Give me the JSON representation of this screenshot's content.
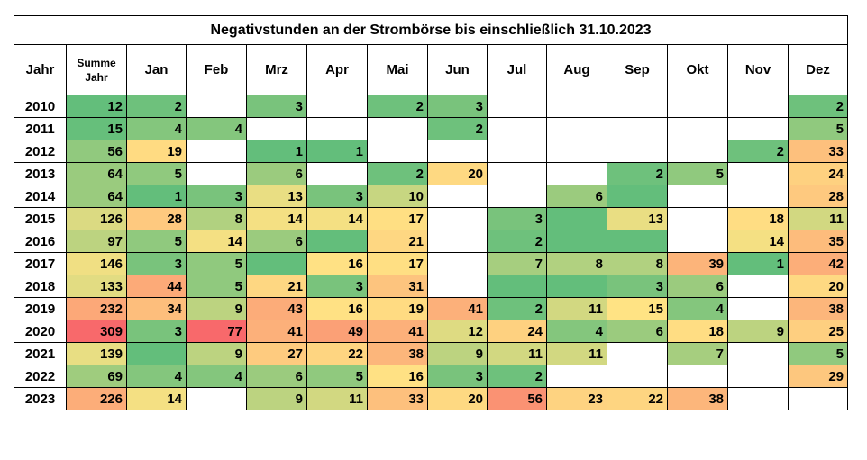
{
  "chart_data": {
    "type": "heatmap",
    "title": "Negativstunden an der Strombörse bis einschließlich  31.10.2023",
    "row_header_label": "Jahr",
    "sum_header_label": [
      "Summe",
      "Jahr"
    ],
    "months": [
      "Jan",
      "Feb",
      "Mrz",
      "Apr",
      "Mai",
      "Jun",
      "Jul",
      "Aug",
      "Sep",
      "Okt",
      "Nov",
      "Dez"
    ],
    "colors": {
      "empty": "#ffffff",
      "shaded_no_value": "#63be7b",
      "scale_low": "#63be7b",
      "scale_mid": "#ffe384",
      "scale_high": "#f8696b"
    },
    "rows": [
      {
        "year": "2010",
        "sum": 12,
        "values": [
          2,
          null,
          3,
          null,
          2,
          3,
          null,
          null,
          null,
          null,
          null,
          2
        ],
        "shaded": [
          true,
          false,
          true,
          false,
          true,
          true,
          false,
          false,
          false,
          false,
          false,
          true
        ]
      },
      {
        "year": "2011",
        "sum": 15,
        "values": [
          4,
          4,
          null,
          null,
          null,
          2,
          null,
          null,
          null,
          null,
          null,
          5
        ],
        "shaded": [
          true,
          true,
          false,
          false,
          false,
          true,
          false,
          false,
          false,
          false,
          false,
          true
        ]
      },
      {
        "year": "2012",
        "sum": 56,
        "values": [
          19,
          null,
          1,
          1,
          null,
          null,
          null,
          null,
          null,
          null,
          2,
          33
        ],
        "shaded": [
          true,
          false,
          true,
          true,
          false,
          false,
          false,
          false,
          false,
          false,
          true,
          true
        ]
      },
      {
        "year": "2013",
        "sum": 64,
        "values": [
          5,
          null,
          6,
          null,
          2,
          20,
          null,
          null,
          2,
          5,
          null,
          24
        ],
        "shaded": [
          true,
          false,
          true,
          false,
          true,
          true,
          false,
          false,
          true,
          true,
          false,
          true
        ]
      },
      {
        "year": "2014",
        "sum": 64,
        "values": [
          1,
          3,
          13,
          3,
          10,
          null,
          null,
          6,
          null,
          null,
          null,
          28
        ],
        "shaded": [
          true,
          true,
          true,
          true,
          true,
          false,
          false,
          true,
          true,
          false,
          false,
          true
        ]
      },
      {
        "year": "2015",
        "sum": 126,
        "values": [
          28,
          8,
          14,
          14,
          17,
          null,
          3,
          null,
          13,
          null,
          18,
          11
        ],
        "shaded": [
          true,
          true,
          true,
          true,
          true,
          false,
          true,
          true,
          true,
          false,
          true,
          true
        ]
      },
      {
        "year": "2016",
        "sum": 97,
        "values": [
          5,
          14,
          6,
          null,
          21,
          null,
          2,
          null,
          null,
          null,
          14,
          35
        ],
        "shaded": [
          true,
          true,
          true,
          true,
          true,
          false,
          true,
          true,
          true,
          false,
          true,
          true
        ]
      },
      {
        "year": "2017",
        "sum": 146,
        "values": [
          3,
          5,
          null,
          16,
          17,
          null,
          7,
          8,
          8,
          39,
          1,
          42
        ],
        "shaded": [
          true,
          true,
          true,
          true,
          true,
          false,
          true,
          true,
          true,
          true,
          true,
          true
        ]
      },
      {
        "year": "2018",
        "sum": 133,
        "values": [
          44,
          5,
          21,
          3,
          31,
          null,
          null,
          null,
          3,
          6,
          null,
          20
        ],
        "shaded": [
          true,
          true,
          true,
          true,
          true,
          false,
          true,
          true,
          true,
          true,
          false,
          true
        ]
      },
      {
        "year": "2019",
        "sum": 232,
        "values": [
          34,
          9,
          43,
          16,
          19,
          41,
          2,
          11,
          15,
          4,
          null,
          38
        ],
        "shaded": [
          true,
          true,
          true,
          true,
          true,
          true,
          true,
          true,
          true,
          true,
          false,
          true
        ]
      },
      {
        "year": "2020",
        "sum": 309,
        "values": [
          3,
          77,
          41,
          49,
          41,
          12,
          24,
          4,
          6,
          18,
          9,
          25
        ],
        "shaded": [
          true,
          true,
          true,
          true,
          true,
          true,
          true,
          true,
          true,
          true,
          true,
          true
        ]
      },
      {
        "year": "2021",
        "sum": 139,
        "values": [
          null,
          9,
          27,
          22,
          38,
          9,
          11,
          11,
          null,
          7,
          null,
          5
        ],
        "shaded": [
          true,
          true,
          true,
          true,
          true,
          true,
          true,
          true,
          false,
          true,
          false,
          true
        ]
      },
      {
        "year": "2022",
        "sum": 69,
        "values": [
          4,
          4,
          6,
          5,
          16,
          3,
          2,
          null,
          null,
          null,
          null,
          29
        ],
        "shaded": [
          true,
          true,
          true,
          true,
          true,
          true,
          true,
          false,
          false,
          false,
          false,
          true
        ]
      },
      {
        "year": "2023",
        "sum": 226,
        "values": [
          14,
          null,
          9,
          11,
          33,
          20,
          56,
          23,
          22,
          38,
          null,
          null
        ],
        "shaded": [
          true,
          false,
          true,
          true,
          true,
          true,
          true,
          true,
          true,
          true,
          false,
          false
        ]
      }
    ]
  }
}
